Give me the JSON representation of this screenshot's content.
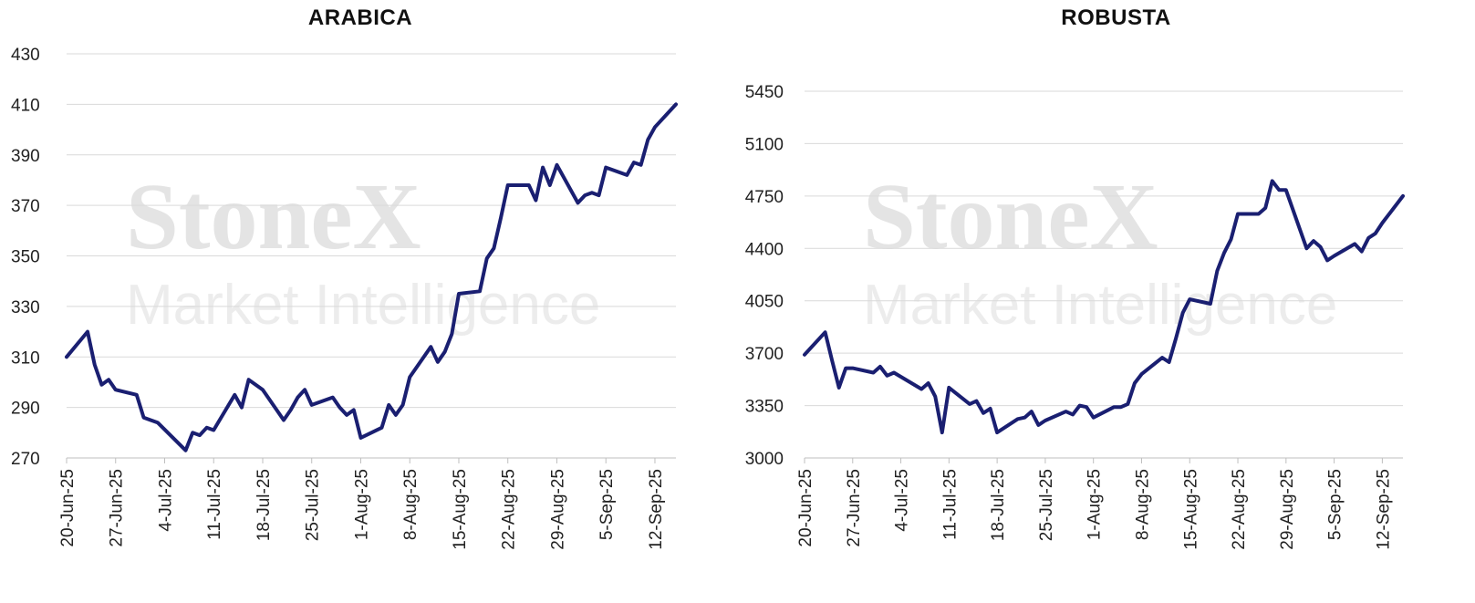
{
  "watermark": {
    "line1": "StoneX",
    "line2": "Market Intelligence"
  },
  "chart_data": [
    {
      "type": "line",
      "title": "ARABICA",
      "xlabel": "",
      "ylabel": "",
      "ylim": [
        270,
        430
      ],
      "yticks": [
        270,
        290,
        310,
        330,
        350,
        370,
        390,
        410,
        430
      ],
      "xticks": [
        "20-Jun-25",
        "27-Jun-25",
        "4-Jul-25",
        "11-Jul-25",
        "18-Jul-25",
        "25-Jul-25",
        "1-Aug-25",
        "8-Aug-25",
        "15-Aug-25",
        "22-Aug-25",
        "29-Aug-25",
        "5-Sep-25",
        "12-Sep-25"
      ],
      "x_start": "2025-06-20",
      "grid": true,
      "color": "#1a1f71",
      "series": [
        {
          "x": [
            "2025-06-20",
            "2025-06-23",
            "2025-06-24",
            "2025-06-25",
            "2025-06-26",
            "2025-06-27",
            "2025-06-30",
            "2025-07-01",
            "2025-07-02",
            "2025-07-03",
            "2025-07-07",
            "2025-07-08",
            "2025-07-09",
            "2025-07-10",
            "2025-07-11",
            "2025-07-14",
            "2025-07-15",
            "2025-07-16",
            "2025-07-17",
            "2025-07-18",
            "2025-07-21",
            "2025-07-22",
            "2025-07-23",
            "2025-07-24",
            "2025-07-25",
            "2025-07-28",
            "2025-07-29",
            "2025-07-30",
            "2025-07-31",
            "2025-08-01",
            "2025-08-04",
            "2025-08-05",
            "2025-08-06",
            "2025-08-07",
            "2025-08-08",
            "2025-08-11",
            "2025-08-12",
            "2025-08-13",
            "2025-08-14",
            "2025-08-15",
            "2025-08-18",
            "2025-08-19",
            "2025-08-20",
            "2025-08-21",
            "2025-08-22",
            "2025-08-25",
            "2025-08-26",
            "2025-08-27",
            "2025-08-28",
            "2025-08-29",
            "2025-09-01",
            "2025-09-02",
            "2025-09-03",
            "2025-09-04",
            "2025-09-05",
            "2025-09-08",
            "2025-09-09",
            "2025-09-10",
            "2025-09-11",
            "2025-09-12",
            "2025-09-15"
          ],
          "values": [
            310,
            320,
            307,
            299,
            301,
            297,
            295,
            286,
            285,
            284,
            273,
            280,
            279,
            282,
            281,
            295,
            290,
            301,
            299,
            297,
            285,
            289,
            294,
            297,
            291,
            294,
            290,
            287,
            289,
            278,
            282,
            291,
            287,
            291,
            302,
            314,
            308,
            312,
            319,
            335,
            336,
            349,
            353,
            365,
            378,
            378,
            372,
            385,
            378,
            386,
            371,
            374,
            375,
            374,
            385,
            382,
            387,
            386,
            396,
            401,
            410
          ]
        }
      ]
    },
    {
      "type": "line",
      "title": "ROBUSTA",
      "xlabel": "",
      "ylabel": "",
      "ylim": [
        3000,
        5450
      ],
      "yticks": [
        3000,
        3350,
        3700,
        4050,
        4400,
        4750,
        5100,
        5450
      ],
      "xticks": [
        "20-Jun-25",
        "27-Jun-25",
        "4-Jul-25",
        "11-Jul-25",
        "18-Jul-25",
        "25-Jul-25",
        "1-Aug-25",
        "8-Aug-25",
        "15-Aug-25",
        "22-Aug-25",
        "29-Aug-25",
        "5-Sep-25",
        "12-Sep-25"
      ],
      "x_start": "2025-06-20",
      "grid": true,
      "color": "#1a1f71",
      "series": [
        {
          "x": [
            "2025-06-20",
            "2025-06-23",
            "2025-06-24",
            "2025-06-25",
            "2025-06-26",
            "2025-06-27",
            "2025-06-30",
            "2025-07-01",
            "2025-07-02",
            "2025-07-03",
            "2025-07-07",
            "2025-07-08",
            "2025-07-09",
            "2025-07-10",
            "2025-07-11",
            "2025-07-14",
            "2025-07-15",
            "2025-07-16",
            "2025-07-17",
            "2025-07-18",
            "2025-07-21",
            "2025-07-22",
            "2025-07-23",
            "2025-07-24",
            "2025-07-25",
            "2025-07-28",
            "2025-07-29",
            "2025-07-30",
            "2025-07-31",
            "2025-08-01",
            "2025-08-04",
            "2025-08-05",
            "2025-08-06",
            "2025-08-07",
            "2025-08-08",
            "2025-08-11",
            "2025-08-12",
            "2025-08-13",
            "2025-08-14",
            "2025-08-15",
            "2025-08-18",
            "2025-08-19",
            "2025-08-20",
            "2025-08-21",
            "2025-08-22",
            "2025-08-25",
            "2025-08-26",
            "2025-08-27",
            "2025-08-28",
            "2025-08-29",
            "2025-09-01",
            "2025-09-02",
            "2025-09-03",
            "2025-09-04",
            "2025-09-05",
            "2025-09-08",
            "2025-09-09",
            "2025-09-10",
            "2025-09-11",
            "2025-09-12",
            "2025-09-15"
          ],
          "values": [
            3690,
            3840,
            3650,
            3470,
            3600,
            3600,
            3570,
            3610,
            3550,
            3570,
            3460,
            3500,
            3410,
            3170,
            3470,
            3360,
            3380,
            3300,
            3330,
            3170,
            3260,
            3270,
            3310,
            3220,
            3250,
            3310,
            3290,
            3350,
            3340,
            3270,
            3340,
            3340,
            3360,
            3500,
            3560,
            3670,
            3640,
            3800,
            3970,
            4060,
            4030,
            4250,
            4370,
            4460,
            4630,
            4630,
            4670,
            4850,
            4790,
            4790,
            4400,
            4450,
            4410,
            4320,
            4350,
            4430,
            4380,
            4470,
            4500,
            4570,
            4750
          ]
        }
      ]
    }
  ]
}
